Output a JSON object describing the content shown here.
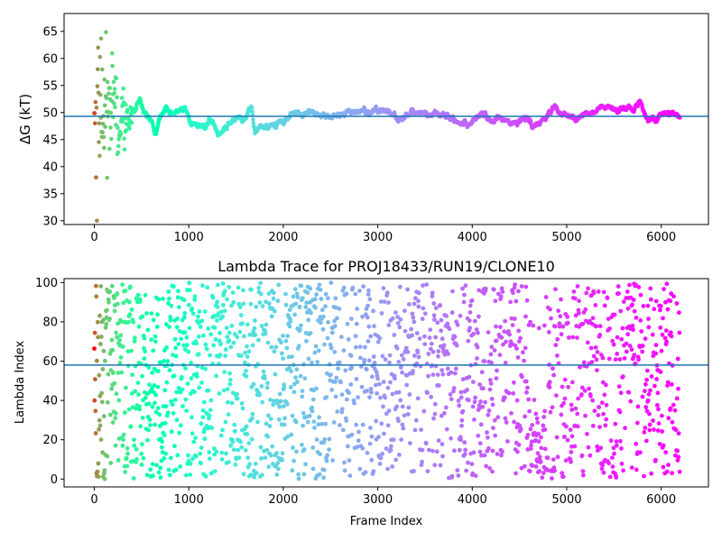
{
  "chart_data": [
    {
      "type": "scatter",
      "title": "",
      "xlabel": "",
      "ylabel": "ΔG (kT)",
      "xlim": [
        -320,
        6500
      ],
      "ylim": [
        29.3,
        68.3
      ],
      "xticks": [
        0,
        1000,
        2000,
        3000,
        4000,
        5000,
        6000
      ],
      "yticks": [
        30,
        35,
        40,
        45,
        50,
        55,
        60,
        65
      ],
      "hline": 49.3,
      "hline_color": "#1f77b4",
      "colormap": "rainbow",
      "grid": false,
      "n_frames": 6200,
      "trace_knots": [
        {
          "x": 0,
          "y": 45.5
        },
        {
          "x": 40,
          "y": 55
        },
        {
          "x": 80,
          "y": 48
        },
        {
          "x": 120,
          "y": 52
        },
        {
          "x": 170,
          "y": 49
        },
        {
          "x": 220,
          "y": 54
        },
        {
          "x": 260,
          "y": 46
        },
        {
          "x": 300,
          "y": 50
        },
        {
          "x": 360,
          "y": 48.5
        },
        {
          "x": 420,
          "y": 50.5
        },
        {
          "x": 480,
          "y": 52.5
        },
        {
          "x": 540,
          "y": 50
        },
        {
          "x": 600,
          "y": 48
        },
        {
          "x": 650,
          "y": 46
        },
        {
          "x": 700,
          "y": 49
        },
        {
          "x": 760,
          "y": 50.8
        },
        {
          "x": 850,
          "y": 50
        },
        {
          "x": 950,
          "y": 50.5
        },
        {
          "x": 1050,
          "y": 48.3
        },
        {
          "x": 1150,
          "y": 47.2
        },
        {
          "x": 1250,
          "y": 48.5
        },
        {
          "x": 1320,
          "y": 46
        },
        {
          "x": 1400,
          "y": 47.5
        },
        {
          "x": 1500,
          "y": 48.7
        },
        {
          "x": 1600,
          "y": 49
        },
        {
          "x": 1660,
          "y": 51.5
        },
        {
          "x": 1700,
          "y": 46.8
        },
        {
          "x": 1850,
          "y": 47.5
        },
        {
          "x": 2000,
          "y": 48.2
        },
        {
          "x": 2100,
          "y": 49.5
        },
        {
          "x": 2200,
          "y": 50
        },
        {
          "x": 2300,
          "y": 50.2
        },
        {
          "x": 2400,
          "y": 49.4
        },
        {
          "x": 2600,
          "y": 49.5
        },
        {
          "x": 2750,
          "y": 50
        },
        {
          "x": 2900,
          "y": 50.3
        },
        {
          "x": 3100,
          "y": 50.2
        },
        {
          "x": 3250,
          "y": 48.7
        },
        {
          "x": 3400,
          "y": 50.2
        },
        {
          "x": 3550,
          "y": 49.6
        },
        {
          "x": 3700,
          "y": 50
        },
        {
          "x": 3800,
          "y": 48.5
        },
        {
          "x": 3950,
          "y": 47.8
        },
        {
          "x": 4100,
          "y": 50.2
        },
        {
          "x": 4200,
          "y": 48.7
        },
        {
          "x": 4400,
          "y": 48.6
        },
        {
          "x": 4600,
          "y": 48.4
        },
        {
          "x": 4680,
          "y": 47.2
        },
        {
          "x": 4800,
          "y": 49.5
        },
        {
          "x": 4880,
          "y": 51
        },
        {
          "x": 4950,
          "y": 49.3
        },
        {
          "x": 5100,
          "y": 48.8
        },
        {
          "x": 5250,
          "y": 50.3
        },
        {
          "x": 5400,
          "y": 50.8
        },
        {
          "x": 5550,
          "y": 50.2
        },
        {
          "x": 5700,
          "y": 50.5
        },
        {
          "x": 5780,
          "y": 52
        },
        {
          "x": 5850,
          "y": 49.5
        },
        {
          "x": 5950,
          "y": 49
        },
        {
          "x": 6050,
          "y": 49.6
        },
        {
          "x": 6100,
          "y": 49.8
        },
        {
          "x": 6200,
          "y": 49.3
        }
      ]
    },
    {
      "type": "scatter",
      "title": "Lambda Trace for PROJ18433/RUN19/CLONE10",
      "xlabel": "Frame Index",
      "ylabel": "Lambda Index",
      "xlim": [
        -320,
        6500
      ],
      "ylim": [
        -4,
        102
      ],
      "xticks": [
        0,
        1000,
        2000,
        3000,
        4000,
        5000,
        6000
      ],
      "yticks": [
        0,
        20,
        40,
        60,
        80,
        100
      ],
      "hline": 58,
      "hline_color": "#1f77b4",
      "colormap": "rainbow",
      "grid": false,
      "n_frames": 6200,
      "lambda_range": [
        0,
        99
      ]
    }
  ]
}
